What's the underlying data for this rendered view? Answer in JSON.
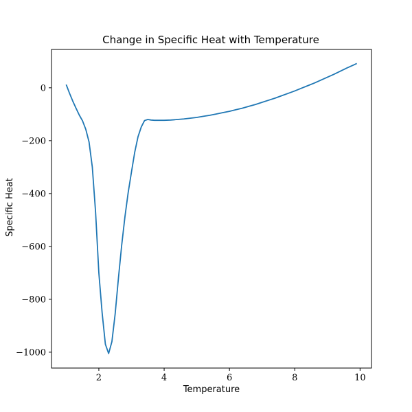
{
  "chart_data": {
    "type": "line",
    "title": "Change in Specific Heat with Temperature",
    "xlabel": "Temperature",
    "ylabel": "Specific Heat",
    "xlim": [
      0.55,
      10.35
    ],
    "ylim": [
      -1060,
      145
    ],
    "xticks": [
      2,
      4,
      6,
      8,
      10
    ],
    "yticks": [
      0,
      -200,
      -400,
      -600,
      -800,
      -1000
    ],
    "xtick_labels": [
      "2",
      "4",
      "6",
      "8",
      "10"
    ],
    "ytick_labels": [
      "0",
      "−200",
      "−400",
      "−600",
      "−800",
      "−1000"
    ],
    "grid": false,
    "series": [
      {
        "color": "#1f77b4",
        "x": [
          1.0,
          1.1,
          1.2,
          1.3,
          1.4,
          1.5,
          1.6,
          1.7,
          1.8,
          1.9,
          2.0,
          2.1,
          2.2,
          2.3,
          2.4,
          2.5,
          2.6,
          2.7,
          2.8,
          2.9,
          3.0,
          3.1,
          3.2,
          3.3,
          3.4,
          3.5,
          3.6,
          3.7,
          3.8,
          3.9,
          4.0,
          4.2,
          4.4,
          4.6,
          4.8,
          5.0,
          5.2,
          5.4,
          5.6,
          5.8,
          6.0,
          6.2,
          6.4,
          6.6,
          6.8,
          7.0,
          7.2,
          7.4,
          7.6,
          7.8,
          8.0,
          8.2,
          8.4,
          8.6,
          8.8,
          9.0,
          9.2,
          9.4,
          9.6,
          9.8,
          9.9
        ],
        "y": [
          12,
          -20,
          -50,
          -77,
          -103,
          -125,
          -157,
          -205,
          -300,
          -470,
          -700,
          -850,
          -970,
          -1005,
          -960,
          -855,
          -720,
          -595,
          -487,
          -395,
          -318,
          -243,
          -185,
          -148,
          -124,
          -120,
          -122,
          -123,
          -123,
          -123,
          -123,
          -122,
          -120,
          -118,
          -115,
          -112,
          -108,
          -104,
          -99,
          -94,
          -89,
          -83,
          -77,
          -70,
          -63,
          -55,
          -47,
          -39,
          -30,
          -21,
          -12,
          -2,
          8,
          18,
          29,
          40,
          51,
          63,
          75,
          86,
          92
        ]
      }
    ]
  }
}
